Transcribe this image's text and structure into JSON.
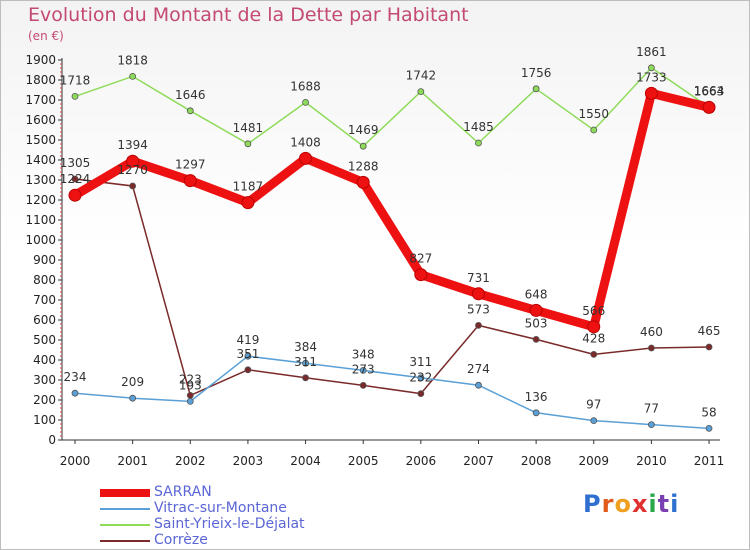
{
  "title": "Evolution du Montant de la Dette par Habitant",
  "subtitle": "(en €)",
  "logo": "Proxiti",
  "chart_data": {
    "type": "line",
    "categories": [
      "2000",
      "2001",
      "2002",
      "2003",
      "2004",
      "2005",
      "2006",
      "2007",
      "2008",
      "2009",
      "2010",
      "2011"
    ],
    "ylim": [
      0,
      1900
    ],
    "yticks": [
      0,
      100,
      200,
      300,
      400,
      500,
      600,
      700,
      800,
      900,
      1000,
      1100,
      1200,
      1300,
      1400,
      1500,
      1600,
      1700,
      1800,
      1900
    ],
    "grid": false,
    "legend_position": "bottom-left",
    "series": [
      {
        "name": "SARRAN",
        "color": "#ee1111",
        "values": [
          1224,
          1394,
          1297,
          1187,
          1408,
          1288,
          827,
          731,
          648,
          566,
          1733,
          1663
        ]
      },
      {
        "name": "Vitrac-sur-Montane",
        "color": "#5aa0d6",
        "values": [
          234,
          209,
          193,
          419,
          384,
          348,
          311,
          274,
          136,
          97,
          77,
          58
        ]
      },
      {
        "name": "Saint-Yrieix-le-Déjalat",
        "color": "#8edb5a",
        "values": [
          1718,
          1818,
          1646,
          1481,
          1688,
          1469,
          1742,
          1485,
          1756,
          1550,
          1861,
          1664
        ]
      },
      {
        "name": "Corrèze",
        "color": "#7a2a2a",
        "values": [
          1305,
          1270,
          223,
          351,
          311,
          273,
          232,
          573,
          503,
          428,
          460,
          465
        ]
      }
    ]
  }
}
